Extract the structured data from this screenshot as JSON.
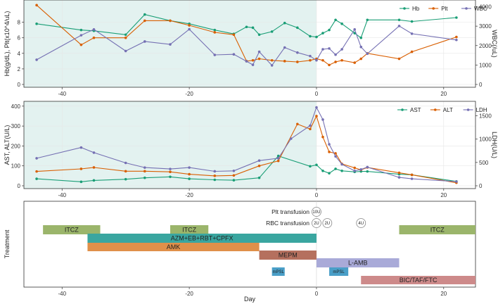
{
  "chart_data": [
    {
      "type": "line",
      "panel": "top",
      "ylabel_left": "Hb(g/dL), Plt(x10^4/uL)",
      "ylabel_right": "WBC(/uL)",
      "xlim": [
        -46,
        25
      ],
      "ylim_left": [
        0,
        10.5
      ],
      "ylim_right": [
        0,
        4200
      ],
      "xticks": [
        -40,
        -20,
        0,
        20
      ],
      "yticks_left": [
        0,
        2,
        4,
        6,
        8
      ],
      "yticks_right": [
        0,
        1000,
        2000,
        3000,
        4000
      ],
      "shaded_x": [
        -46,
        0
      ],
      "legend": [
        "Hb",
        "Plt",
        "WBC"
      ],
      "series": [
        {
          "name": "Hb",
          "axis": "left",
          "color": "#1a9e76",
          "x": [
            -44,
            -37,
            -35,
            -30,
            -27,
            -23,
            -20,
            -16,
            -13,
            -11,
            -10,
            -9,
            -7,
            -5,
            -3,
            -1,
            0,
            1,
            2,
            3,
            4,
            6,
            7,
            8,
            13,
            15,
            22
          ],
          "y": [
            7.8,
            7.0,
            6.9,
            6.4,
            9.0,
            8.2,
            7.8,
            7.0,
            6.5,
            7.4,
            7.3,
            6.4,
            6.8,
            7.9,
            7.3,
            6.2,
            6.1,
            6.6,
            7.0,
            8.3,
            7.8,
            6.6,
            6.0,
            8.3,
            8.3,
            8.1,
            8.6
          ]
        },
        {
          "name": "Plt",
          "axis": "left",
          "color": "#d95f02",
          "x": [
            -44,
            -37,
            -35,
            -30,
            -27,
            -23,
            -20,
            -16,
            -13,
            -11,
            -10,
            -9,
            -7,
            -5,
            -3,
            -1,
            0,
            1,
            2,
            3,
            4,
            6,
            7,
            8,
            13,
            15,
            22
          ],
          "y": [
            10.2,
            5.1,
            6.0,
            6.0,
            8.2,
            8.2,
            7.6,
            6.7,
            6.4,
            3.0,
            3.1,
            3.3,
            3.1,
            3.0,
            2.9,
            3.1,
            3.3,
            3.1,
            2.5,
            2.9,
            3.1,
            2.8,
            3.3,
            4.0,
            3.3,
            4.2,
            6.1
          ]
        },
        {
          "name": "WBC",
          "axis": "right",
          "color": "#7570b3",
          "x": [
            -44,
            -37,
            -35,
            -30,
            -27,
            -23,
            -20,
            -16,
            -13,
            -11,
            -10,
            -9,
            -7,
            -5,
            -3,
            -1,
            0,
            1,
            2,
            3,
            4,
            6,
            7,
            8,
            13,
            15,
            22
          ],
          "y": [
            1270,
            2530,
            2830,
            1720,
            2210,
            2060,
            2840,
            1520,
            1550,
            1190,
            1010,
            1680,
            980,
            1900,
            1640,
            1460,
            1240,
            1810,
            1850,
            1530,
            1810,
            2830,
            1930,
            1580,
            3010,
            2610,
            2290
          ]
        }
      ]
    },
    {
      "type": "line",
      "panel": "middle",
      "ylabel_left": "AST, ALT(U/L)",
      "ylabel_right": "LDH(U/L)",
      "xlim": [
        -46,
        25
      ],
      "ylim_left": [
        0,
        410
      ],
      "ylim_right": [
        0,
        1750
      ],
      "xticks": [
        -40,
        -20,
        0,
        20
      ],
      "yticks_left": [
        0,
        100,
        200,
        300,
        400
      ],
      "yticks_right": [
        0,
        500,
        1000,
        1500
      ],
      "shaded_x": [
        -46,
        0
      ],
      "legend": [
        "AST",
        "ALT",
        "LDH"
      ],
      "series": [
        {
          "name": "AST",
          "axis": "left",
          "color": "#1a9e76",
          "x": [
            -44,
            -37,
            -35,
            -30,
            -27,
            -23,
            -20,
            -16,
            -13,
            -9,
            -6,
            -1,
            0,
            1,
            2,
            3,
            4,
            6,
            7,
            8,
            13,
            15,
            22
          ],
          "y": [
            35,
            20,
            27,
            33,
            40,
            45,
            35,
            30,
            28,
            40,
            150,
            98,
            105,
            75,
            63,
            85,
            75,
            70,
            72,
            72,
            58,
            55,
            22
          ]
        },
        {
          "name": "ALT",
          "axis": "left",
          "color": "#d95f02",
          "x": [
            -44,
            -37,
            -35,
            -30,
            -27,
            -23,
            -20,
            -16,
            -13,
            -9,
            -6,
            -3,
            -1,
            0,
            1,
            2,
            3,
            4,
            6,
            7,
            8,
            13,
            15,
            22
          ],
          "y": [
            72,
            85,
            92,
            73,
            73,
            70,
            58,
            50,
            52,
            100,
            125,
            310,
            285,
            350,
            245,
            170,
            163,
            110,
            90,
            80,
            92,
            65,
            55,
            15
          ]
        },
        {
          "name": "LDH",
          "axis": "right",
          "color": "#7570b3",
          "x": [
            -44,
            -37,
            -35,
            -30,
            -27,
            -23,
            -20,
            -16,
            -13,
            -9,
            -6,
            -4,
            -1,
            0,
            1,
            2,
            3,
            4,
            6,
            7,
            8,
            13,
            15,
            22
          ],
          "y": [
            590,
            820,
            710,
            490,
            390,
            360,
            390,
            310,
            320,
            540,
            590,
            1010,
            1290,
            1680,
            1420,
            890,
            630,
            460,
            320,
            350,
            400,
            180,
            150,
            90
          ]
        }
      ]
    },
    {
      "type": "timeline",
      "panel": "bottom",
      "ylabel": "Treatment",
      "xlabel": "Day",
      "xlim": [
        -46,
        25
      ],
      "xticks": [
        -40,
        -20,
        0,
        20
      ],
      "transfusion_labels": {
        "plt": "Plt   transfusion",
        "rbc": "RBC transfusion"
      },
      "plt_transfusions": [
        {
          "day": 0,
          "label": "10U"
        }
      ],
      "rbc_transfusions": [
        {
          "day": 0,
          "label": "2U"
        },
        {
          "day": 1.7,
          "label": "2U"
        },
        {
          "day": 7,
          "label": "4U"
        }
      ],
      "bars": [
        {
          "label": "ITCZ",
          "start": -43,
          "end": -34,
          "row": 0,
          "color": "#9bb56b"
        },
        {
          "label": "ITCZ",
          "start": -23,
          "end": -17,
          "row": 0,
          "color": "#9bb56b"
        },
        {
          "label": "ITCZ",
          "start": 13,
          "end": 25,
          "row": 0,
          "color": "#9bb56b"
        },
        {
          "label": "AZM+EB+RBT+CPFX",
          "start": -36,
          "end": 0,
          "row": 1,
          "color": "#3aa6a0"
        },
        {
          "label": "AMK",
          "start": -36,
          "end": -9,
          "row": 2,
          "color": "#e0904a"
        },
        {
          "label": "MEPM",
          "start": -9,
          "end": 0,
          "row": 3,
          "color": "#b5705e"
        },
        {
          "label": "L-AMB",
          "start": 0,
          "end": 13,
          "row": 4,
          "color": "#a9aad8"
        },
        {
          "label": "mPSL",
          "start": -7,
          "end": -5,
          "row": 5,
          "color": "#4a9fc8"
        },
        {
          "label": "mPSL",
          "start": 2,
          "end": 5,
          "row": 5,
          "color": "#4a9fc8"
        },
        {
          "label": "BIC/TAF/FTC",
          "start": 7,
          "end": 25,
          "row": 6,
          "color": "#cd8a8a"
        }
      ]
    }
  ]
}
